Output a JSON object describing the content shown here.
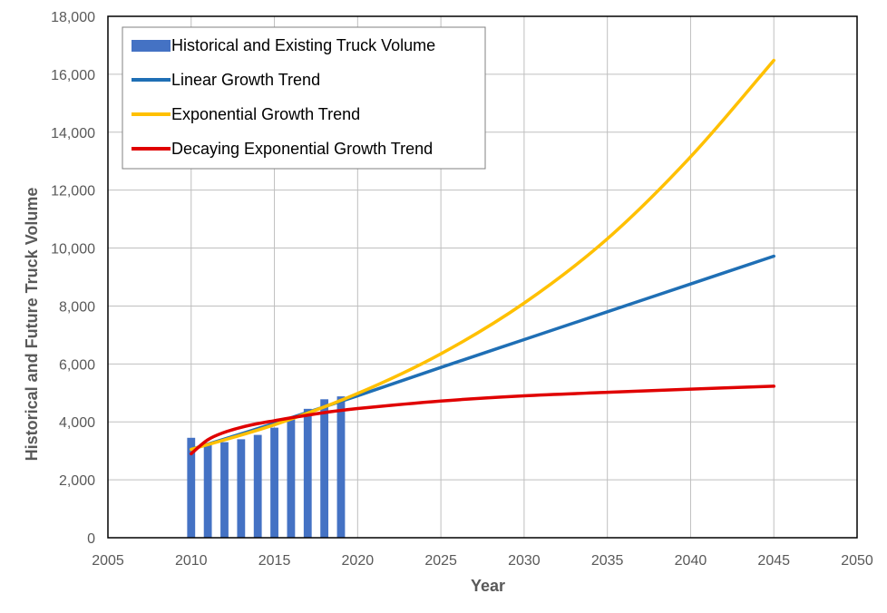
{
  "chart_data": {
    "type": "bar+line",
    "title": "",
    "xlabel": "Year",
    "ylabel": "Historical and Future Truck Volume",
    "xlim": [
      2005,
      2050
    ],
    "ylim": [
      0,
      18000
    ],
    "x_ticks": [
      2005,
      2010,
      2015,
      2020,
      2025,
      2030,
      2035,
      2040,
      2045,
      2050
    ],
    "y_ticks": [
      0,
      2000,
      4000,
      6000,
      8000,
      10000,
      12000,
      14000,
      16000,
      18000
    ],
    "x_tick_labels": [
      "2005",
      "2010",
      "2015",
      "2020",
      "2025",
      "2030",
      "2035",
      "2040",
      "2045",
      "2050"
    ],
    "y_tick_labels": [
      "0",
      "2,000",
      "4,000",
      "6,000",
      "8,000",
      "10,000",
      "12,000",
      "14,000",
      "16,000",
      "18,000"
    ],
    "grid": true,
    "legend_position": "top-left",
    "series": [
      {
        "name": "Historical and Existing Truck Volume",
        "kind": "bar",
        "color": "#4472C4",
        "x": [
          2010,
          2011,
          2012,
          2013,
          2014,
          2015,
          2016,
          2017,
          2018,
          2019
        ],
        "values": [
          3450,
          3250,
          3300,
          3400,
          3550,
          3800,
          4150,
          4450,
          4780,
          4880
        ]
      },
      {
        "name": "Linear Growth Trend",
        "kind": "line",
        "color": "#1F6FB5",
        "x": [
          2010,
          2015,
          2020,
          2025,
          2030,
          2035,
          2040,
          2045
        ],
        "values": [
          3050,
          3950,
          4900,
          5880,
          6840,
          7800,
          8760,
          9720
        ]
      },
      {
        "name": "Exponential Growth Trend",
        "kind": "line",
        "color": "#FFC000",
        "x": [
          2010,
          2015,
          2020,
          2025,
          2030,
          2035,
          2040,
          2045
        ],
        "values": [
          3050,
          3900,
          4980,
          6350,
          8100,
          10320,
          13150,
          16480
        ]
      },
      {
        "name": "Decaying Exponential Growth Trend",
        "kind": "line",
        "color": "#E00000",
        "x": [
          2010,
          2011,
          2012,
          2013,
          2014,
          2015,
          2016,
          2018,
          2020,
          2025,
          2030,
          2035,
          2040,
          2045
        ],
        "values": [
          2900,
          3380,
          3640,
          3810,
          3940,
          4040,
          4140,
          4320,
          4460,
          4720,
          4900,
          5020,
          5130,
          5230
        ]
      }
    ]
  }
}
